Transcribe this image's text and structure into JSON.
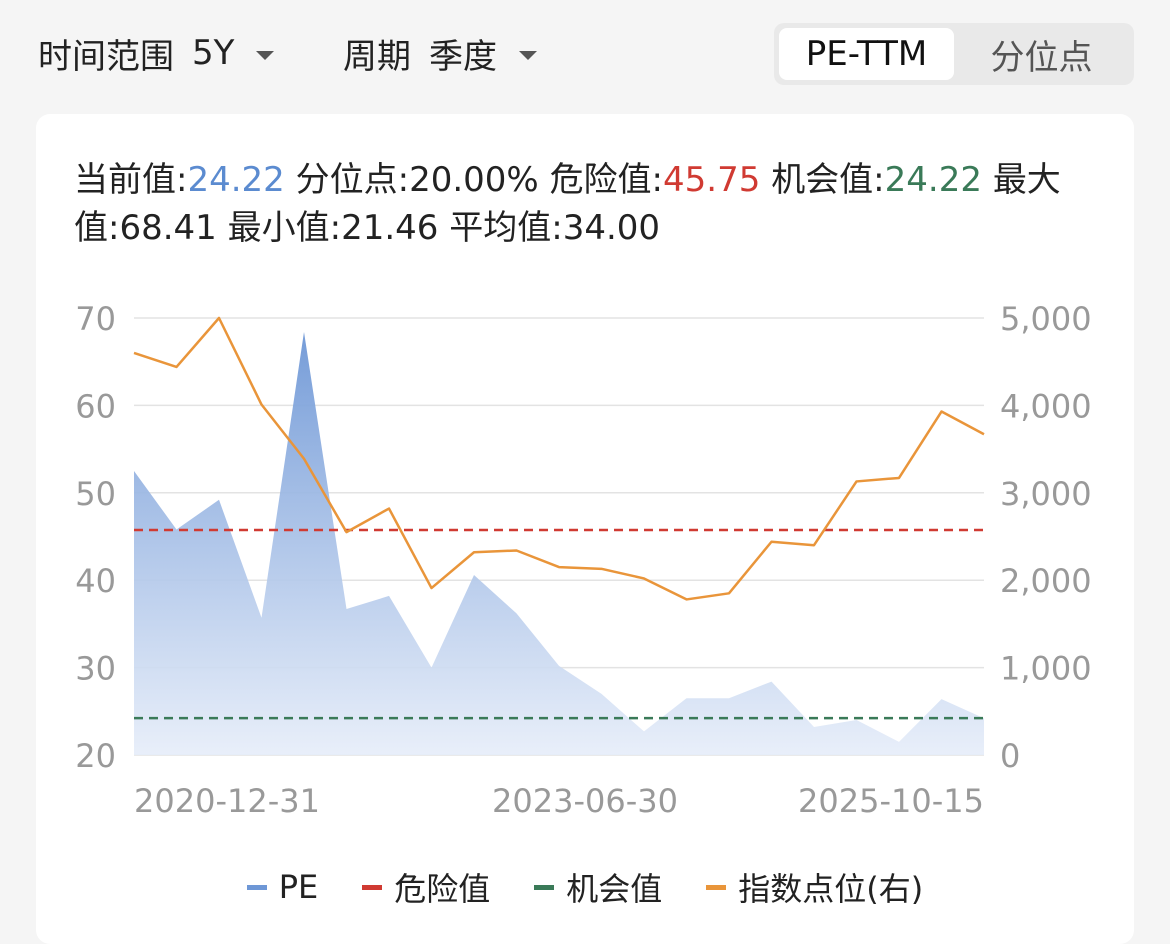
{
  "filters": {
    "range_label": "时间范围",
    "range_value": "5Y",
    "period_label": "周期",
    "period_value": "季度"
  },
  "segment": {
    "active": "PE-TTM",
    "inactive": "分位点"
  },
  "stats": {
    "current_label": "当前值:",
    "current_value": "24.22",
    "percentile_label": "分位点:",
    "percentile_value": "20.00%",
    "danger_label": "危险值:",
    "danger_value": "45.75",
    "opportunity_label": "机会值:",
    "opportunity_value": "24.22",
    "max_label": "最大值:",
    "max_value": "68.41",
    "min_label": "最小值:",
    "min_value": "21.46",
    "avg_label": "平均值:",
    "avg_value": "34.00"
  },
  "colors": {
    "pe": "#6e97d6",
    "danger": "#d03a32",
    "opportunity": "#3a7a58",
    "index": "#e9953a"
  },
  "chart_data": {
    "type": "area",
    "x_tick_labels": [
      "2020-12-31",
      "2023-06-30",
      "2025-10-15"
    ],
    "y_left": {
      "ticks": [
        20,
        30,
        40,
        50,
        60,
        70
      ],
      "ylim": [
        20,
        70
      ]
    },
    "y_right": {
      "ticks": [
        "0",
        "1,000",
        "2,000",
        "3,000",
        "4,000",
        "5,000"
      ],
      "ylim": [
        0,
        5000
      ]
    },
    "grid": true,
    "legend_position": "bottom",
    "series": [
      {
        "name": "PE",
        "type": "area",
        "axis": "left",
        "values": [
          52.5,
          45.8,
          49.2,
          35.7,
          68.4,
          36.7,
          38.2,
          30.0,
          40.6,
          36.2,
          30.2,
          27.0,
          22.7,
          26.5,
          26.5,
          28.4,
          23.2,
          24.0,
          21.5,
          26.4,
          24.2
        ]
      },
      {
        "name": "指数点位(右)",
        "type": "line",
        "axis": "right",
        "values": [
          4600,
          4440,
          5000,
          4010,
          3390,
          2550,
          2820,
          1910,
          2320,
          2340,
          2150,
          2130,
          2020,
          1780,
          1850,
          2440,
          2400,
          3130,
          3170,
          3930,
          3670
        ]
      },
      {
        "name": "危险值",
        "type": "hline",
        "axis": "left",
        "value": 45.75
      },
      {
        "name": "机会值",
        "type": "hline",
        "axis": "left",
        "value": 24.22
      }
    ]
  },
  "legend": {
    "pe": "PE",
    "danger": "危险值",
    "opportunity": "机会值",
    "index": "指数点位(右)"
  }
}
